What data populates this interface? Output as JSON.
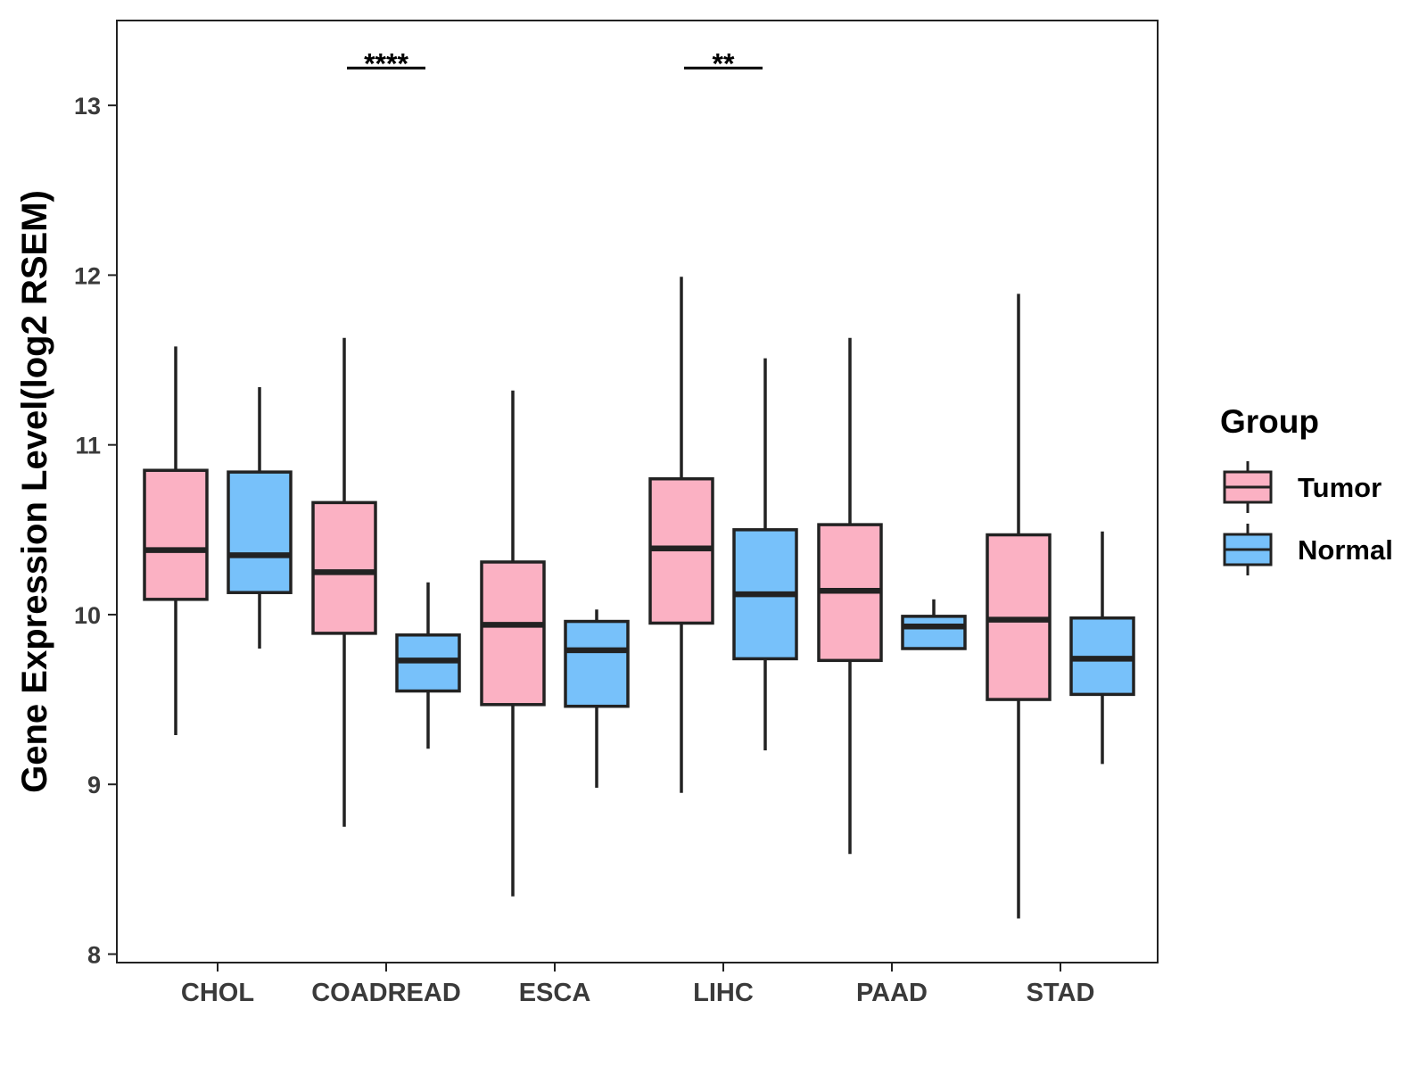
{
  "chart_data": {
    "type": "boxplot",
    "title": "",
    "xlabel": "",
    "ylabel": "Gene Expression Level(log2 RSEM)",
    "ylim": [
      7.95,
      13.5
    ],
    "yticks": [
      8,
      9,
      10,
      11,
      12,
      13
    ],
    "categories": [
      "CHOL",
      "COADREAD",
      "ESCA",
      "LIHC",
      "PAAD",
      "STAD"
    ],
    "grid": false,
    "legend": {
      "title": "Group",
      "position": "right",
      "entries": [
        "Tumor",
        "Normal"
      ]
    },
    "colors": {
      "Tumor": "#fbb1c3",
      "Normal": "#77c1fa",
      "line": "#222222"
    },
    "series": [
      {
        "name": "Tumor",
        "boxes": [
          {
            "whisker_low": 9.29,
            "q1": 10.09,
            "median": 10.38,
            "q3": 10.85,
            "whisker_high": 11.58
          },
          {
            "whisker_low": 8.75,
            "q1": 9.89,
            "median": 10.25,
            "q3": 10.66,
            "whisker_high": 11.63
          },
          {
            "whisker_low": 8.34,
            "q1": 9.47,
            "median": 9.94,
            "q3": 10.31,
            "whisker_high": 11.32
          },
          {
            "whisker_low": 8.95,
            "q1": 9.95,
            "median": 10.39,
            "q3": 10.8,
            "whisker_high": 11.99
          },
          {
            "whisker_low": 8.59,
            "q1": 9.73,
            "median": 10.14,
            "q3": 10.53,
            "whisker_high": 11.63
          },
          {
            "whisker_low": 8.21,
            "q1": 9.5,
            "median": 9.97,
            "q3": 10.47,
            "whisker_high": 11.89
          }
        ]
      },
      {
        "name": "Normal",
        "boxes": [
          {
            "whisker_low": 9.8,
            "q1": 10.13,
            "median": 10.35,
            "q3": 10.84,
            "whisker_high": 11.34
          },
          {
            "whisker_low": 9.21,
            "q1": 9.55,
            "median": 9.73,
            "q3": 9.88,
            "whisker_high": 10.19
          },
          {
            "whisker_low": 8.98,
            "q1": 9.46,
            "median": 9.79,
            "q3": 9.96,
            "whisker_high": 10.03
          },
          {
            "whisker_low": 9.2,
            "q1": 9.74,
            "median": 10.12,
            "q3": 10.5,
            "whisker_high": 11.51
          },
          {
            "whisker_low": 9.8,
            "q1": 9.8,
            "median": 9.93,
            "q3": 9.99,
            "whisker_high": 10.09
          },
          {
            "whisker_low": 9.12,
            "q1": 9.53,
            "median": 9.74,
            "q3": 9.98,
            "whisker_high": 10.49
          }
        ]
      }
    ],
    "annotations": [
      {
        "category": "COADREAD",
        "label": "****",
        "y": 13.22
      },
      {
        "category": "LIHC",
        "label": "**",
        "y": 13.22
      }
    ]
  }
}
